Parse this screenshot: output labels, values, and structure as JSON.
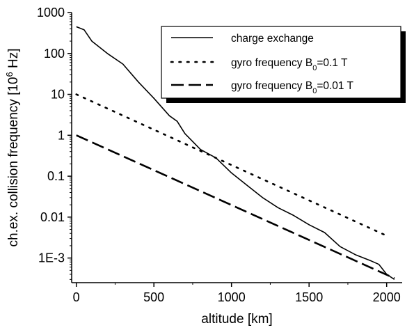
{
  "chart_data": {
    "type": "line",
    "title": "",
    "xlabel": "altitude [km]",
    "ylabel_text": "ch.ex. collision frequency [10",
    "ylabel_exp": "6",
    "ylabel_unit": " Hz]",
    "xlim": [
      -30,
      2100
    ],
    "ylim": [
      0.00025,
      1000
    ],
    "yscale": "log",
    "grid": false,
    "legend_position": "top-right",
    "x_ticks": [
      0,
      500,
      1000,
      1500,
      2000
    ],
    "x_tick_labels": [
      "0",
      "500",
      "1000",
      "1500",
      "2000"
    ],
    "y_ticks": [
      0.001,
      0.01,
      0.1,
      1,
      10,
      100,
      1000
    ],
    "y_tick_labels": [
      "1E-3",
      "0.01",
      "0.1",
      "1",
      "10",
      "100",
      "1000"
    ],
    "series": [
      {
        "name": "charge exchange",
        "style": "solid",
        "x": [
          0,
          50,
          100,
          200,
          300,
          400,
          500,
          600,
          650,
          700,
          800,
          900,
          1000,
          1100,
          1200,
          1300,
          1400,
          1500,
          1600,
          1700,
          1800,
          1900,
          1950,
          2000,
          2050
        ],
        "y": [
          450,
          380,
          200,
          100,
          55,
          20,
          8,
          3,
          2.2,
          1.1,
          0.45,
          0.28,
          0.12,
          0.06,
          0.03,
          0.017,
          0.011,
          0.0065,
          0.0042,
          0.0019,
          0.0012,
          0.00085,
          0.0007,
          0.0004,
          0.0003
        ]
      },
      {
        "name": "gyro frequency B",
        "name_sub": "0",
        "name_suffix": "=0.1 T",
        "style": "dotted",
        "x": [
          0,
          2000
        ],
        "y": [
          10,
          0.0035
        ]
      },
      {
        "name": "gyro frequency B",
        "name_sub": "0",
        "name_suffix": "=0.01 T",
        "style": "dashed",
        "x": [
          0,
          2050
        ],
        "y": [
          1,
          0.00032
        ]
      }
    ]
  }
}
